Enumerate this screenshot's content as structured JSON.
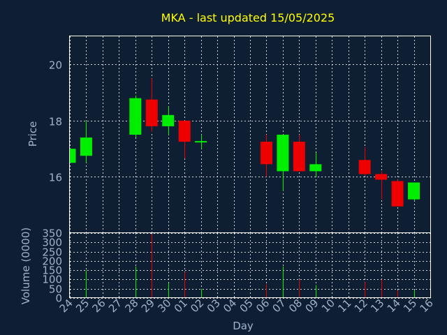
{
  "chart_data": {
    "type": "candlestick",
    "title": "MKA - last updated 15/05/2025",
    "xlabel": "Day",
    "price_panel": {
      "ylabel": "Price",
      "ylim": [
        14.0,
        21.0
      ],
      "yticks": [
        "16",
        "18",
        "20"
      ]
    },
    "volume_panel": {
      "ylabel": "Volume (0000)",
      "ylim": [
        0,
        350
      ],
      "yticks": [
        "0",
        "50",
        "100",
        "150",
        "200",
        "250",
        "300",
        "350"
      ]
    },
    "x_ticks": [
      "24",
      "25",
      "26",
      "27",
      "28",
      "29",
      "30",
      "01",
      "02",
      "03",
      "04",
      "05",
      "06",
      "07",
      "08",
      "09",
      "10",
      "11",
      "12",
      "13",
      "14",
      "15",
      "16"
    ],
    "candles": [
      {
        "day": "24",
        "open": 16.5,
        "high": 17.0,
        "low": 16.5,
        "close": 17.0,
        "volume": 0
      },
      {
        "day": "25",
        "open": 16.75,
        "high": 18.0,
        "low": 16.5,
        "close": 17.4,
        "volume": 150
      },
      {
        "day": "28",
        "open": 17.5,
        "high": 18.9,
        "low": 17.4,
        "close": 18.8,
        "volume": 170
      },
      {
        "day": "29",
        "open": 18.75,
        "high": 19.5,
        "low": 17.6,
        "close": 17.8,
        "volume": 345
      },
      {
        "day": "30",
        "open": 17.8,
        "high": 18.5,
        "low": 17.5,
        "close": 18.2,
        "volume": 80
      },
      {
        "day": "01",
        "open": 18.0,
        "high": 18.0,
        "low": 16.65,
        "close": 17.25,
        "volume": 140
      },
      {
        "day": "02",
        "open": 17.25,
        "high": 17.5,
        "low": 17.0,
        "close": 17.25,
        "volume": 50
      },
      {
        "day": "06",
        "open": 17.25,
        "high": 17.5,
        "low": 16.0,
        "close": 16.45,
        "volume": 75
      },
      {
        "day": "07",
        "open": 16.2,
        "high": 17.5,
        "low": 15.5,
        "close": 17.5,
        "volume": 170
      },
      {
        "day": "08",
        "open": 17.25,
        "high": 17.5,
        "low": 16.2,
        "close": 16.2,
        "volume": 100
      },
      {
        "day": "09",
        "open": 16.2,
        "high": 16.85,
        "low": 16.0,
        "close": 16.45,
        "volume": 70
      },
      {
        "day": "12",
        "open": 16.6,
        "high": 17.05,
        "low": 16.05,
        "close": 16.1,
        "volume": 85
      },
      {
        "day": "13",
        "open": 16.1,
        "high": 16.2,
        "low": 15.2,
        "close": 15.9,
        "volume": 100
      },
      {
        "day": "14",
        "open": 15.85,
        "high": 15.9,
        "low": 14.95,
        "close": 14.95,
        "volume": 40
      },
      {
        "day": "15",
        "open": 15.2,
        "high": 15.8,
        "low": 15.15,
        "close": 15.8,
        "volume": 40
      }
    ],
    "grid": true,
    "colors": {
      "background": "#0f1f33",
      "up": "#00ee00",
      "down": "#ee0000",
      "title": "#ffff00",
      "text": "#9fb3cc",
      "grid": "#ffffff"
    }
  }
}
